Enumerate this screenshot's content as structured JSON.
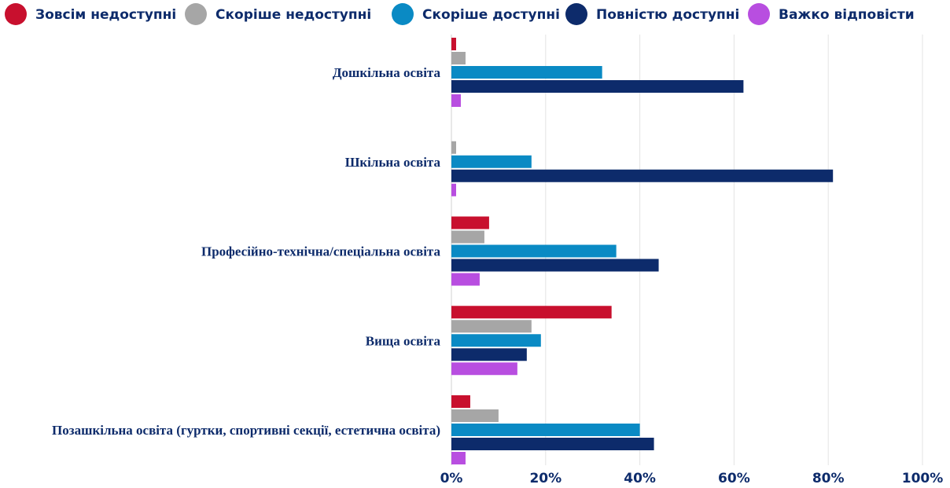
{
  "chart_data": {
    "type": "bar",
    "orientation": "horizontal",
    "categories": [
      "Дошкільна освіта",
      "Шкільна освіта",
      "Професійно-технічна/спеціальна освіта",
      "Вища освіта",
      "Позашкільна освіта (гуртки, спортивні секції, естетична освіта)"
    ],
    "series": [
      {
        "name": "Зовсім недоступні",
        "color": "#C8102E",
        "values": [
          1,
          0,
          8,
          34,
          4
        ]
      },
      {
        "name": "Скоріше недоступні",
        "color": "#A6A6A6",
        "values": [
          3,
          1,
          7,
          17,
          10
        ]
      },
      {
        "name": "Скоріше доступні",
        "color": "#0A8AC4",
        "values": [
          32,
          17,
          35,
          19,
          40
        ]
      },
      {
        "name": "Повністю доступні",
        "color": "#0D2B6B",
        "values": [
          62,
          81,
          44,
          16,
          43
        ]
      },
      {
        "name": "Важко відповісти",
        "color": "#B84EE0",
        "values": [
          2,
          1,
          6,
          14,
          3
        ]
      }
    ],
    "xlim": [
      0,
      100
    ],
    "x_ticks": [
      "0%",
      "20%",
      "40%",
      "60%",
      "80%",
      "100%"
    ],
    "grid": true,
    "legend_position": "top",
    "label_color": "#0D2B6B",
    "xlabel": "",
    "ylabel": "",
    "title": ""
  }
}
